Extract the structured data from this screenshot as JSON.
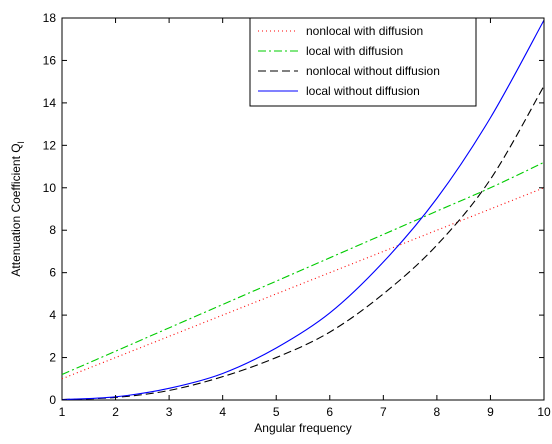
{
  "chart_data": {
    "type": "line",
    "xlabel": "Angular frequency",
    "ylabel": "Attenuation Coefficient Q",
    "ylabel_subscript": "l",
    "xlim": [
      1,
      10
    ],
    "ylim": [
      0,
      18
    ],
    "xticks": [
      1,
      2,
      3,
      4,
      5,
      6,
      7,
      8,
      9,
      10
    ],
    "yticks": [
      0,
      2,
      4,
      6,
      8,
      10,
      12,
      14,
      16,
      18
    ],
    "grid": false,
    "legend_position": "top-right",
    "x": [
      1,
      2,
      3,
      4,
      5,
      6,
      7,
      8,
      9,
      10
    ],
    "series": [
      {
        "name": "nonlocal with diffusion",
        "color": "#ff0000",
        "style": "dotted",
        "values": [
          1.0,
          2.0,
          3.0,
          4.0,
          5.0,
          6.0,
          7.0,
          8.0,
          9.0,
          10.0
        ]
      },
      {
        "name": "local with diffusion",
        "color": "#00cc00",
        "style": "dashdot",
        "values": [
          1.2,
          2.3,
          3.4,
          4.5,
          5.6,
          6.7,
          7.8,
          8.9,
          10.0,
          11.2
        ]
      },
      {
        "name": "nonlocal without diffusion",
        "color": "#000000",
        "style": "dashed",
        "values": [
          0.02,
          0.12,
          0.45,
          1.1,
          2.0,
          3.2,
          5.0,
          7.3,
          10.4,
          14.8
        ]
      },
      {
        "name": "local without diffusion",
        "color": "#0000ff",
        "style": "solid",
        "values": [
          0.02,
          0.15,
          0.55,
          1.25,
          2.45,
          4.1,
          6.5,
          9.5,
          13.3,
          17.9
        ]
      }
    ]
  }
}
